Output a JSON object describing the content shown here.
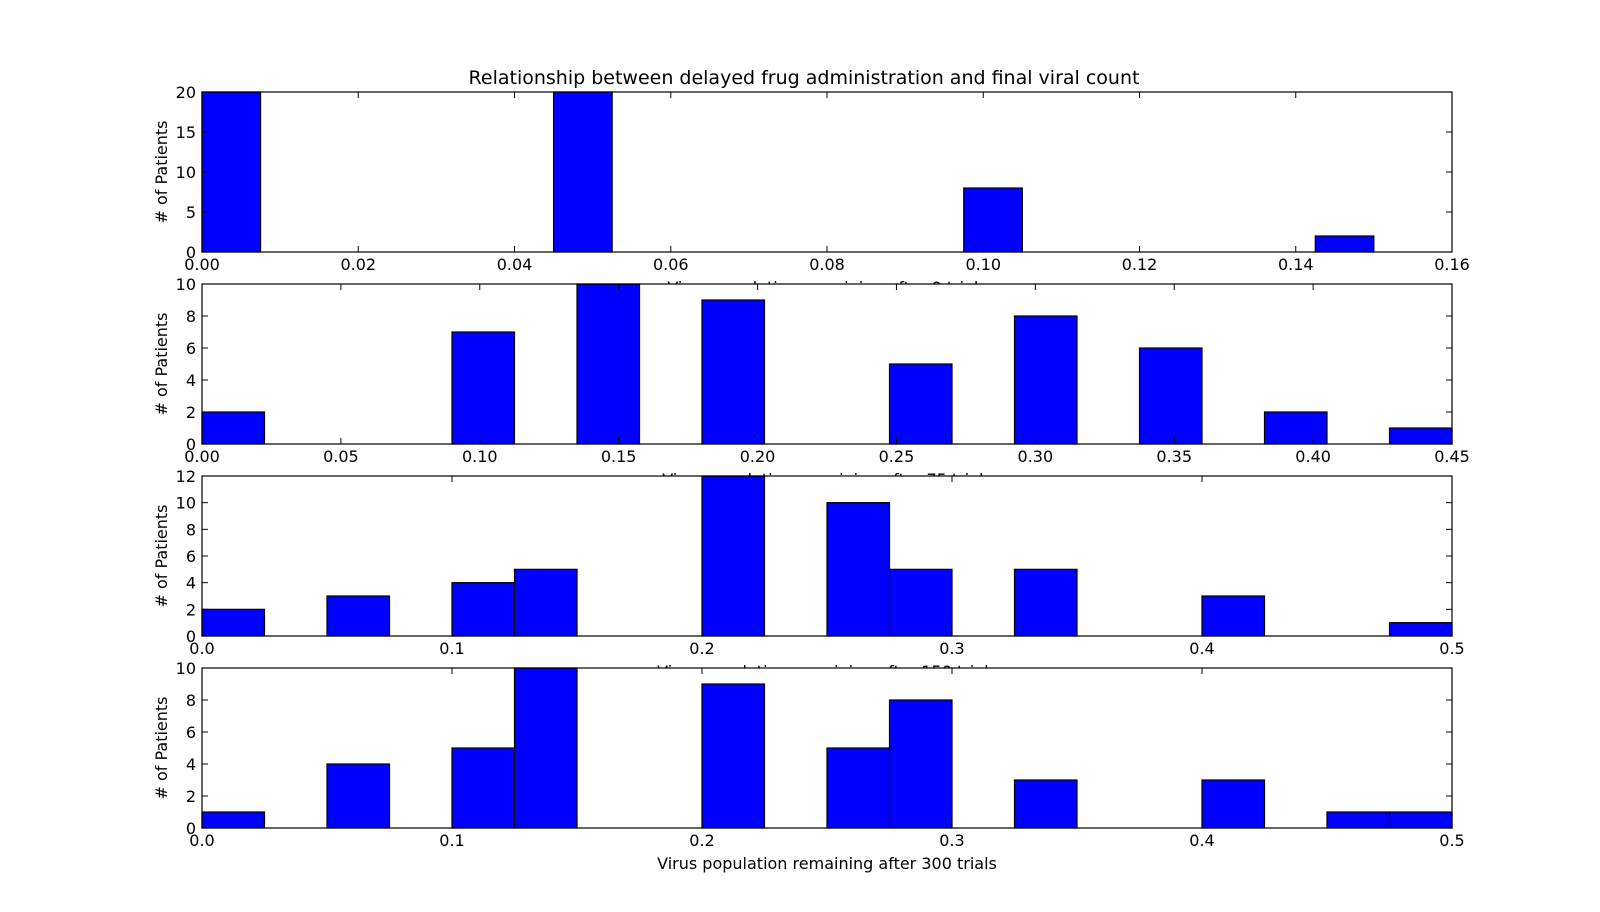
{
  "figure_title": "Relationship between delayed frug administration and final viral count",
  "colors": {
    "bar_fill": "#0000ff",
    "bar_edge": "#000000",
    "axes": "#000000",
    "background": "#ffffff"
  },
  "chart_data": [
    {
      "type": "bar",
      "title": "Relationship between delayed frug administration and final viral count",
      "xlabel": "Virus population remaining after 0 trials",
      "ylabel": "# of Patients",
      "xlim": [
        0,
        0.16
      ],
      "ylim": [
        0,
        20
      ],
      "xticks": [
        0.0,
        0.02,
        0.04,
        0.06,
        0.08,
        0.1,
        0.12,
        0.14,
        0.16
      ],
      "xtick_labels": [
        "0.00",
        "0.02",
        "0.04",
        "0.06",
        "0.08",
        "0.10",
        "0.12",
        "0.14",
        "0.16"
      ],
      "yticks": [
        0,
        5,
        10,
        15,
        20
      ],
      "ytick_labels": [
        "0",
        "5",
        "10",
        "15",
        "20"
      ],
      "bars": [
        {
          "x0": 0.0,
          "x1": 0.0075,
          "value": 20
        },
        {
          "x0": 0.045,
          "x1": 0.0525,
          "value": 20
        },
        {
          "x0": 0.0975,
          "x1": 0.105,
          "value": 8
        },
        {
          "x0": 0.1425,
          "x1": 0.15,
          "value": 2
        }
      ]
    },
    {
      "type": "bar",
      "xlabel": "Virus population remaining after 75 trials",
      "ylabel": "# of Patients",
      "xlim": [
        0,
        0.45
      ],
      "ylim": [
        0,
        10
      ],
      "xticks": [
        0.0,
        0.05,
        0.1,
        0.15,
        0.2,
        0.25,
        0.3,
        0.35,
        0.4,
        0.45
      ],
      "xtick_labels": [
        "0.00",
        "0.05",
        "0.10",
        "0.15",
        "0.20",
        "0.25",
        "0.30",
        "0.35",
        "0.40",
        "0.45"
      ],
      "yticks": [
        0,
        2,
        4,
        6,
        8,
        10
      ],
      "ytick_labels": [
        "0",
        "2",
        "4",
        "6",
        "8",
        "10"
      ],
      "bars": [
        {
          "x0": 0.0,
          "x1": 0.0225,
          "value": 2
        },
        {
          "x0": 0.09,
          "x1": 0.1125,
          "value": 7
        },
        {
          "x0": 0.135,
          "x1": 0.1575,
          "value": 10
        },
        {
          "x0": 0.18,
          "x1": 0.2025,
          "value": 9
        },
        {
          "x0": 0.2475,
          "x1": 0.27,
          "value": 5
        },
        {
          "x0": 0.2925,
          "x1": 0.315,
          "value": 8
        },
        {
          "x0": 0.3375,
          "x1": 0.36,
          "value": 6
        },
        {
          "x0": 0.3825,
          "x1": 0.405,
          "value": 2
        },
        {
          "x0": 0.4275,
          "x1": 0.45,
          "value": 1
        }
      ]
    },
    {
      "type": "bar",
      "xlabel": "Virus population remaining after 150 trials",
      "ylabel": "# of Patients",
      "xlim": [
        0,
        0.5
      ],
      "ylim": [
        0,
        12
      ],
      "xticks": [
        0.0,
        0.1,
        0.2,
        0.3,
        0.4,
        0.5
      ],
      "xtick_labels": [
        "0.0",
        "0.1",
        "0.2",
        "0.3",
        "0.4",
        "0.5"
      ],
      "yticks": [
        0,
        2,
        4,
        6,
        8,
        10,
        12
      ],
      "ytick_labels": [
        "0",
        "2",
        "4",
        "6",
        "8",
        "10",
        "12"
      ],
      "bars": [
        {
          "x0": 0.0,
          "x1": 0.025,
          "value": 2
        },
        {
          "x0": 0.05,
          "x1": 0.075,
          "value": 3
        },
        {
          "x0": 0.1,
          "x1": 0.125,
          "value": 4
        },
        {
          "x0": 0.125,
          "x1": 0.15,
          "value": 5
        },
        {
          "x0": 0.2,
          "x1": 0.225,
          "value": 12
        },
        {
          "x0": 0.25,
          "x1": 0.275,
          "value": 10
        },
        {
          "x0": 0.275,
          "x1": 0.3,
          "value": 5
        },
        {
          "x0": 0.325,
          "x1": 0.35,
          "value": 5
        },
        {
          "x0": 0.4,
          "x1": 0.425,
          "value": 3
        },
        {
          "x0": 0.475,
          "x1": 0.5,
          "value": 1
        }
      ]
    },
    {
      "type": "bar",
      "xlabel": "Virus population remaining after 300 trials",
      "ylabel": "# of Patients",
      "xlim": [
        0,
        0.5
      ],
      "ylim": [
        0,
        10
      ],
      "xticks": [
        0.0,
        0.1,
        0.2,
        0.3,
        0.4,
        0.5
      ],
      "xtick_labels": [
        "0.0",
        "0.1",
        "0.2",
        "0.3",
        "0.4",
        "0.5"
      ],
      "yticks": [
        0,
        2,
        4,
        6,
        8,
        10
      ],
      "ytick_labels": [
        "0",
        "2",
        "4",
        "6",
        "8",
        "10"
      ],
      "bars": [
        {
          "x0": 0.0,
          "x1": 0.025,
          "value": 1
        },
        {
          "x0": 0.05,
          "x1": 0.075,
          "value": 4
        },
        {
          "x0": 0.1,
          "x1": 0.125,
          "value": 5
        },
        {
          "x0": 0.125,
          "x1": 0.15,
          "value": 10
        },
        {
          "x0": 0.2,
          "x1": 0.225,
          "value": 9
        },
        {
          "x0": 0.25,
          "x1": 0.275,
          "value": 5
        },
        {
          "x0": 0.275,
          "x1": 0.3,
          "value": 8
        },
        {
          "x0": 0.325,
          "x1": 0.35,
          "value": 3
        },
        {
          "x0": 0.4,
          "x1": 0.425,
          "value": 3
        },
        {
          "x0": 0.45,
          "x1": 0.475,
          "value": 1
        },
        {
          "x0": 0.475,
          "x1": 0.5,
          "value": 1
        }
      ]
    }
  ]
}
